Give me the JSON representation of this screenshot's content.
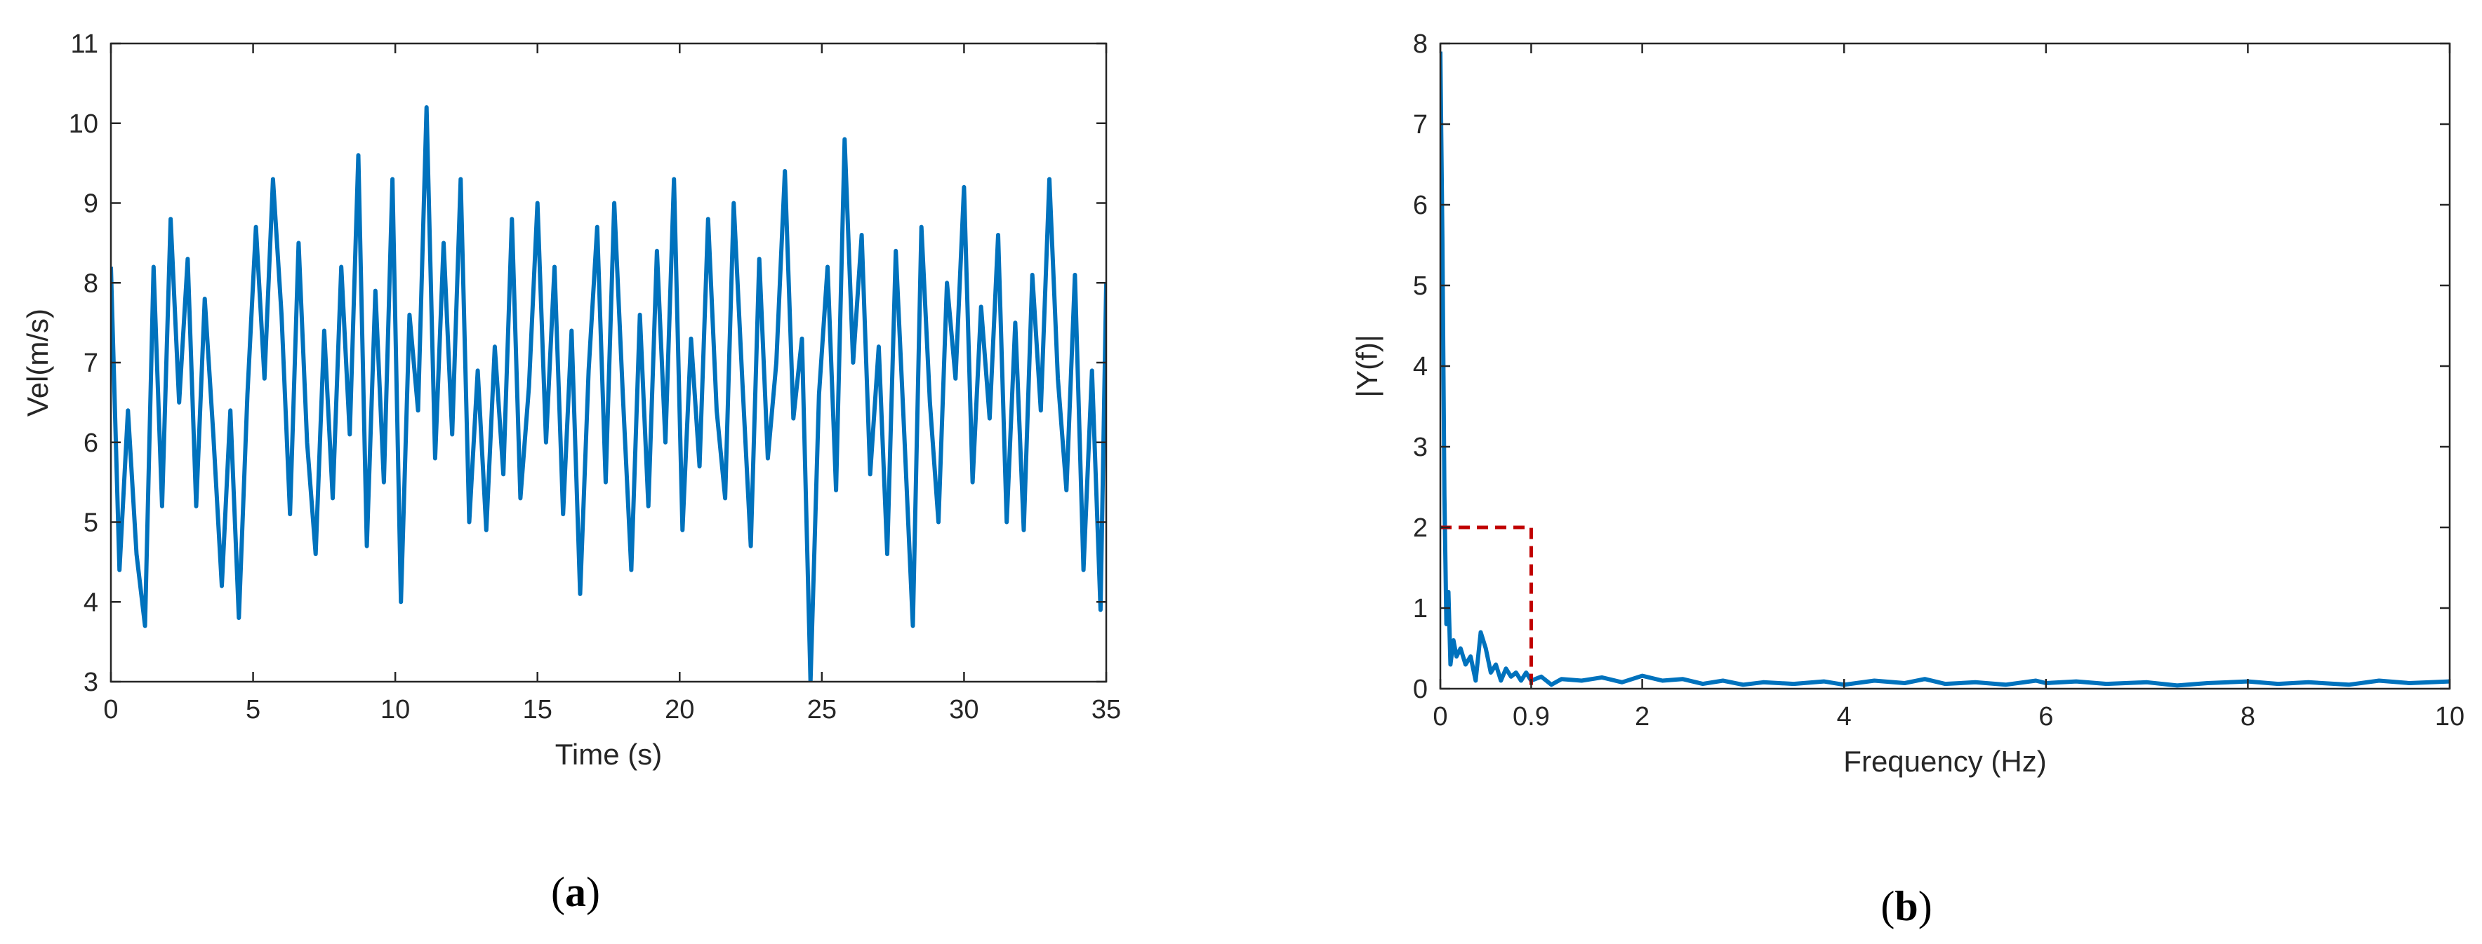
{
  "chart_data": [
    {
      "type": "line",
      "panel_label": "a",
      "title": "",
      "xlabel": "Time (s)",
      "ylabel": "Vel(m/s)",
      "xlim": [
        0,
        35
      ],
      "ylim": [
        3,
        11
      ],
      "xticks": [
        0,
        5,
        10,
        15,
        20,
        25,
        30,
        35
      ],
      "yticks": [
        3,
        4,
        5,
        6,
        7,
        8,
        9,
        10,
        11
      ],
      "grid": false,
      "legend": "none",
      "line_color": "#0072BD",
      "series": [
        {
          "x": [
            0,
            0.3,
            0.6,
            0.9,
            1.2,
            1.5,
            1.8,
            2.1,
            2.4,
            2.7,
            3.0,
            3.3,
            3.6,
            3.9,
            4.2,
            4.5,
            4.8,
            5.1,
            5.4,
            5.7,
            6.0,
            6.3,
            6.6,
            6.9,
            7.2,
            7.5,
            7.8,
            8.1,
            8.4,
            8.7,
            9.0,
            9.3,
            9.6,
            9.9,
            10.2,
            10.5,
            10.8,
            11.1,
            11.4,
            11.7,
            12.0,
            12.3,
            12.6,
            12.9,
            13.2,
            13.5,
            13.8,
            14.1,
            14.4,
            14.7,
            15.0,
            15.3,
            15.6,
            15.9,
            16.2,
            16.5,
            16.8,
            17.1,
            17.4,
            17.7,
            18.0,
            18.3,
            18.6,
            18.9,
            19.2,
            19.5,
            19.8,
            20.1,
            20.4,
            20.7,
            21.0,
            21.3,
            21.6,
            21.9,
            22.2,
            22.5,
            22.8,
            23.1,
            23.4,
            23.7,
            24.0,
            24.3,
            24.6,
            24.9,
            25.2,
            25.5,
            25.8,
            26.1,
            26.4,
            26.7,
            27.0,
            27.3,
            27.6,
            27.9,
            28.2,
            28.5,
            28.8,
            29.1,
            29.4,
            29.7,
            30.0,
            30.3,
            30.6,
            30.9,
            31.2,
            31.5,
            31.8,
            32.1,
            32.4,
            32.7,
            33.0,
            33.3,
            33.6,
            33.9,
            34.2,
            34.5,
            34.8,
            35.0
          ],
          "y": [
            8.2,
            4.4,
            6.4,
            4.6,
            3.7,
            8.2,
            5.2,
            8.8,
            6.5,
            8.3,
            5.2,
            7.8,
            6.1,
            4.2,
            6.4,
            3.8,
            6.6,
            8.7,
            6.8,
            9.3,
            7.6,
            5.1,
            8.5,
            6.0,
            4.6,
            7.4,
            5.3,
            8.2,
            6.1,
            9.6,
            4.7,
            7.9,
            5.5,
            9.3,
            4.0,
            7.6,
            6.4,
            10.2,
            5.8,
            8.5,
            6.1,
            9.3,
            5.0,
            6.9,
            4.9,
            7.2,
            5.6,
            8.8,
            5.3,
            6.7,
            9.0,
            6.0,
            8.2,
            5.1,
            7.4,
            4.1,
            6.9,
            8.7,
            5.5,
            9.0,
            6.6,
            4.4,
            7.6,
            5.2,
            8.4,
            6.0,
            9.3,
            4.9,
            7.3,
            5.7,
            8.8,
            6.4,
            5.3,
            9.0,
            6.8,
            4.7,
            8.3,
            5.8,
            7.0,
            9.4,
            6.3,
            7.3,
            3.0,
            6.6,
            8.2,
            5.4,
            9.8,
            7.0,
            8.6,
            5.6,
            7.2,
            4.6,
            8.4,
            6.1,
            3.7,
            8.7,
            6.5,
            5.0,
            8.0,
            6.8,
            9.2,
            5.5,
            7.7,
            6.3,
            8.6,
            5.0,
            7.5,
            4.9,
            8.1,
            6.4,
            9.3,
            6.8,
            5.4,
            8.1,
            4.4,
            6.9,
            3.9,
            8.0
          ]
        }
      ]
    },
    {
      "type": "line",
      "panel_label": "b",
      "title": "",
      "xlabel": "Frequency (Hz)",
      "ylabel": "|Y(f)|",
      "xlim": [
        0,
        10
      ],
      "ylim": [
        0,
        8
      ],
      "xticks": [
        0,
        0.9,
        2,
        4,
        6,
        8,
        10
      ],
      "xtick_labels": [
        "0",
        "0.9",
        "2",
        "4",
        "6",
        "8",
        "10"
      ],
      "yticks": [
        0,
        1,
        2,
        3,
        4,
        5,
        6,
        7,
        8
      ],
      "grid": false,
      "legend": "none",
      "line_color": "#0072BD",
      "highlight_box": {
        "x": [
          0,
          0.9
        ],
        "y": [
          0,
          2
        ],
        "color": "#C00000",
        "style": "dashed"
      },
      "series": [
        {
          "x": [
            0,
            0.02,
            0.04,
            0.06,
            0.08,
            0.1,
            0.13,
            0.16,
            0.2,
            0.25,
            0.3,
            0.35,
            0.4,
            0.45,
            0.5,
            0.55,
            0.6,
            0.65,
            0.7,
            0.75,
            0.8,
            0.85,
            0.9,
            1.0,
            1.1,
            1.2,
            1.4,
            1.6,
            1.8,
            2.0,
            2.2,
            2.4,
            2.6,
            2.8,
            3.0,
            3.2,
            3.5,
            3.8,
            4.0,
            4.3,
            4.6,
            4.8,
            5.0,
            5.3,
            5.6,
            5.9,
            6.0,
            6.3,
            6.6,
            7.0,
            7.3,
            7.6,
            8.0,
            8.3,
            8.6,
            9.0,
            9.3,
            9.6,
            10.0
          ],
          "y": [
            7.9,
            5.6,
            2.4,
            0.8,
            1.2,
            0.3,
            0.6,
            0.4,
            0.5,
            0.3,
            0.4,
            0.1,
            0.7,
            0.5,
            0.2,
            0.3,
            0.1,
            0.25,
            0.15,
            0.2,
            0.1,
            0.2,
            0.1,
            0.15,
            0.05,
            0.12,
            0.1,
            0.14,
            0.08,
            0.16,
            0.1,
            0.12,
            0.06,
            0.1,
            0.05,
            0.08,
            0.06,
            0.09,
            0.05,
            0.1,
            0.07,
            0.12,
            0.06,
            0.08,
            0.05,
            0.1,
            0.07,
            0.09,
            0.06,
            0.08,
            0.04,
            0.07,
            0.09,
            0.06,
            0.08,
            0.05,
            0.1,
            0.07,
            0.09
          ]
        }
      ]
    }
  ]
}
